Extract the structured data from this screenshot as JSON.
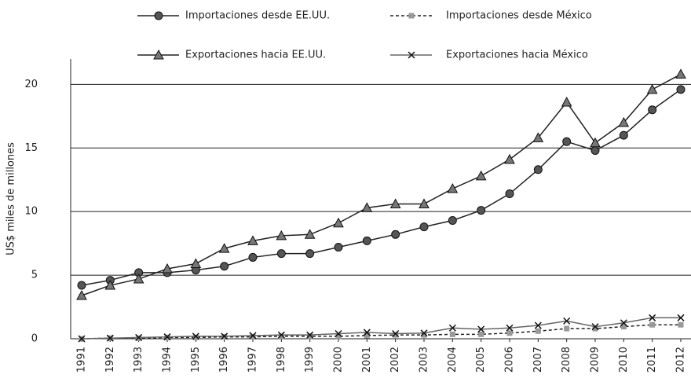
{
  "chart_data": {
    "type": "line",
    "y_label": "US$ miles de millones",
    "categories": [
      "1991",
      "1992",
      "1993",
      "1994",
      "1995",
      "1996",
      "1997",
      "1998",
      "1999",
      "2000",
      "2001",
      "2002",
      "2003",
      "2004",
      "2005",
      "2006",
      "2007",
      "2008",
      "2009",
      "2010",
      "2011",
      "2012"
    ],
    "series": [
      {
        "name": "Importaciones desde EE.UU.",
        "color": "#222222",
        "marker": "circle",
        "dash": false,
        "values": [
          4.2,
          4.6,
          5.2,
          5.2,
          5.4,
          5.7,
          6.4,
          6.7,
          6.7,
          7.2,
          7.7,
          8.2,
          8.8,
          9.3,
          10.1,
          11.4,
          13.3,
          15.5,
          14.8,
          16.0,
          18.0,
          19.6
        ]
      },
      {
        "name": "Importaciones desde México",
        "color": "#222222",
        "marker": "square",
        "dash": true,
        "values": [
          0,
          0.05,
          0.05,
          0.1,
          0.1,
          0.15,
          0.15,
          0.2,
          0.2,
          0.2,
          0.25,
          0.3,
          0.3,
          0.35,
          0.35,
          0.45,
          0.6,
          0.8,
          0.8,
          0.95,
          1.1,
          1.1
        ]
      },
      {
        "name": "Exportaciones hacia EE.UU.",
        "color": "#222222",
        "marker": "triangle",
        "dash": false,
        "values": [
          3.4,
          4.2,
          4.7,
          5.5,
          5.9,
          7.1,
          7.7,
          8.1,
          8.2,
          9.1,
          10.3,
          10.6,
          10.6,
          11.8,
          12.8,
          14.1,
          15.8,
          18.6,
          15.4,
          17.0,
          19.6,
          20.8
        ]
      },
      {
        "name": "Exportaciones hacia México",
        "color": "#666666",
        "marker": "x",
        "dash": false,
        "values": [
          0,
          0.05,
          0.1,
          0.15,
          0.2,
          0.2,
          0.25,
          0.3,
          0.3,
          0.4,
          0.5,
          0.4,
          0.45,
          0.85,
          0.75,
          0.85,
          1.05,
          1.4,
          0.95,
          1.25,
          1.65,
          1.65
        ]
      }
    ],
    "ylim": [
      0,
      22
    ],
    "yticks": [
      0,
      5,
      10,
      15,
      20
    ],
    "grid": true,
    "legend": "top"
  }
}
